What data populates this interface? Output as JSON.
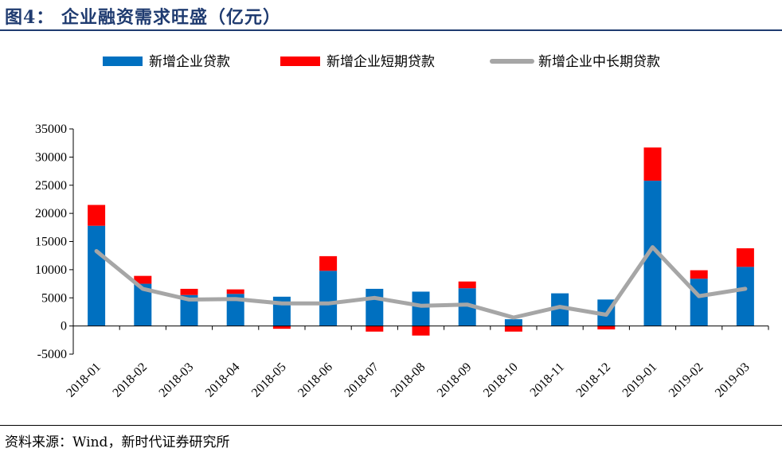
{
  "title": "图4： 企业融资需求旺盛（亿元）",
  "source": "资料来源：Wind，新时代证券研究所",
  "colors": {
    "total": "#0070c0",
    "short": "#ff0000",
    "long": "#a6a6a6",
    "title": "#1f3b70"
  },
  "chart_data": {
    "type": "bar",
    "categories": [
      "2018-01",
      "2018-02",
      "2018-03",
      "2018-04",
      "2018-05",
      "2018-06",
      "2018-07",
      "2018-08",
      "2018-09",
      "2018-10",
      "2018-11",
      "2018-12",
      "2019-01",
      "2019-02",
      "2019-03"
    ],
    "ylim": [
      -5000,
      35000
    ],
    "yticks": [
      "35000",
      "30000",
      "25000",
      "20000",
      "15000",
      "10000",
      "5000",
      "0",
      "-5000"
    ],
    "legend_position": "top",
    "series": [
      {
        "name": "新增企业贷款",
        "kind": "bar",
        "values": [
          17800,
          7500,
          5500,
          5700,
          5200,
          9800,
          6600,
          6100,
          6700,
          1200,
          5800,
          4700,
          25800,
          8400,
          10500
        ]
      },
      {
        "name": "新增企业短期贷款",
        "kind": "bar-stack",
        "values": [
          3700,
          1400,
          1100,
          800,
          -500,
          2600,
          -1000,
          -1700,
          1200,
          -1000,
          0,
          -600,
          5900,
          1500,
          3300
        ]
      },
      {
        "name": "新增企业中长期贷款",
        "kind": "line",
        "values": [
          13300,
          6600,
          4700,
          4800,
          4000,
          4000,
          5000,
          3600,
          3800,
          1500,
          3400,
          2000,
          14000,
          5300,
          6600
        ]
      }
    ]
  }
}
